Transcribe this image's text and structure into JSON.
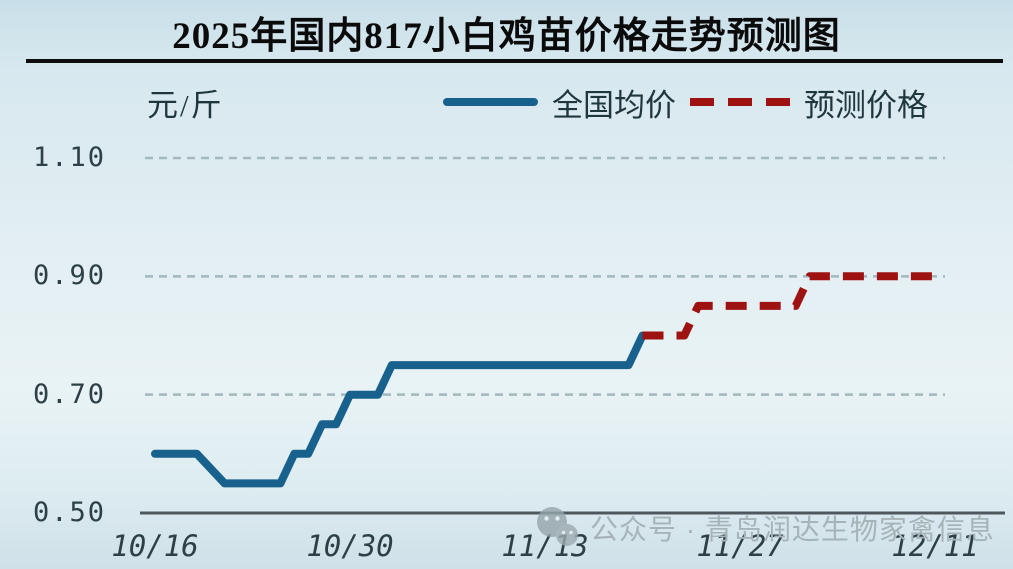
{
  "title": "2025年国内817小白鸡苗价格走势预测图",
  "y_axis_unit": "元/斤",
  "legend": [
    {
      "label": "全国均价",
      "style": "solid",
      "color": "#17618c"
    },
    {
      "label": "预测价格",
      "style": "dashed",
      "color": "#9e1212"
    }
  ],
  "watermark": {
    "icon": "wechat-icon",
    "text": "公众号 · 青岛润达生物家禽信息"
  },
  "colors": {
    "actual_line": "#17618c",
    "forecast_line": "#9e1212",
    "gridline": "#a2b8be",
    "axis_line": "#4e585c",
    "text_dark": "#1e363c"
  },
  "chart_data": {
    "type": "line",
    "title": "2025年国内817小白鸡苗价格走势预测图",
    "xlabel": "",
    "ylabel": "元/斤",
    "ylim": [
      0.5,
      1.1
    ],
    "yticks": [
      1.1,
      0.9,
      0.7,
      0.5
    ],
    "ytick_labels": [
      "1.10",
      "0.90",
      "0.70",
      "0.50"
    ],
    "xticks": [
      "10/16",
      "10/30",
      "11/13",
      "11/27",
      "12/11"
    ],
    "grid": "horizontal-dashed",
    "legend_position": "top",
    "series": [
      {
        "name": "全国均价",
        "style": "solid",
        "color": "#17618c",
        "points": [
          [
            "10/16",
            0.6
          ],
          [
            "10/19",
            0.6
          ],
          [
            "10/21",
            0.55
          ],
          [
            "10/25",
            0.55
          ],
          [
            "10/26",
            0.6
          ],
          [
            "10/27",
            0.6
          ],
          [
            "10/28",
            0.65
          ],
          [
            "10/29",
            0.65
          ],
          [
            "10/30",
            0.7
          ],
          [
            "11/01",
            0.7
          ],
          [
            "11/02",
            0.75
          ],
          [
            "11/19",
            0.75
          ],
          [
            "11/20",
            0.8
          ]
        ]
      },
      {
        "name": "预测价格",
        "style": "dashed",
        "color": "#9e1212",
        "points": [
          [
            "11/20",
            0.8
          ],
          [
            "11/23",
            0.8
          ],
          [
            "11/24",
            0.85
          ],
          [
            "12/01",
            0.85
          ],
          [
            "12/02",
            0.9
          ],
          [
            "12/11",
            0.9
          ]
        ]
      }
    ]
  }
}
